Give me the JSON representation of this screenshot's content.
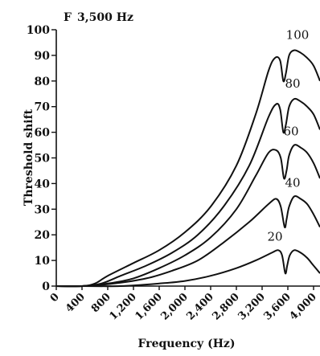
{
  "chart_data": {
    "type": "line",
    "panel_label": "F",
    "title": "3,500 Hz",
    "xlabel": "Frequency (Hz)",
    "ylabel": "Threshold shift",
    "xlim": [
      0,
      4100
    ],
    "ylim": [
      0,
      100
    ],
    "x_ticks": [
      "0",
      "400",
      "800",
      "1,200",
      "1,600",
      "2,000",
      "2,400",
      "2,800",
      "3,200",
      "3,600",
      "4,000"
    ],
    "x_tick_values": [
      0,
      400,
      800,
      1200,
      1600,
      2000,
      2400,
      2800,
      3200,
      3600,
      4000
    ],
    "y_ticks": [
      "0",
      "10",
      "20",
      "30",
      "40",
      "50",
      "60",
      "70",
      "80",
      "90",
      "100"
    ],
    "y_tick_values": [
      0,
      10,
      20,
      30,
      40,
      50,
      60,
      70,
      80,
      90,
      100
    ],
    "grid": false,
    "legend": "none",
    "series": [
      {
        "label": "100",
        "x": [
          0,
          400,
          600,
          800,
          1200,
          1600,
          2000,
          2400,
          2800,
          3100,
          3300,
          3400,
          3480,
          3530,
          3570,
          3620,
          3700,
          3800,
          3900,
          4000,
          4100
        ],
        "y": [
          0,
          0,
          1,
          4,
          9,
          14,
          21,
          31,
          47,
          67,
          84,
          89,
          88,
          80,
          83,
          90,
          92,
          91,
          89,
          86,
          80
        ]
      },
      {
        "label": "80",
        "x": [
          0,
          400,
          700,
          1000,
          1400,
          1800,
          2200,
          2600,
          3000,
          3300,
          3420,
          3480,
          3530,
          3570,
          3620,
          3700,
          3800,
          3900,
          4000,
          4100
        ],
        "y": [
          0,
          0,
          1,
          4,
          8,
          13,
          20,
          31,
          47,
          66,
          71,
          69,
          60,
          63,
          70,
          73,
          72,
          70,
          67,
          61
        ]
      },
      {
        "label": "60",
        "x": [
          0,
          400,
          800,
          1200,
          1600,
          2000,
          2400,
          2800,
          3100,
          3300,
          3420,
          3490,
          3540,
          3580,
          3620,
          3700,
          3800,
          3900,
          4000,
          4100
        ],
        "y": [
          0,
          0,
          1,
          3,
          7,
          12,
          19,
          30,
          43,
          52,
          53,
          50,
          42,
          45,
          51,
          55,
          54,
          52,
          48,
          42
        ]
      },
      {
        "label": "40",
        "x": [
          0,
          400,
          900,
          1400,
          1800,
          2200,
          2600,
          3000,
          3300,
          3420,
          3490,
          3550,
          3580,
          3620,
          3700,
          3800,
          3900,
          4000,
          4100
        ],
        "y": [
          0,
          0,
          1,
          3,
          6,
          10,
          17,
          25,
          32,
          34,
          31,
          23,
          26,
          31,
          35,
          34,
          32,
          28,
          23
        ]
      },
      {
        "label": "20",
        "x": [
          0,
          400,
          1000,
          1600,
          2000,
          2400,
          2800,
          3100,
          3350,
          3450,
          3510,
          3560,
          3590,
          3630,
          3700,
          3800,
          3900,
          4000,
          4100
        ],
        "y": [
          0,
          0,
          0,
          1,
          2,
          4,
          7,
          10,
          13,
          14,
          12,
          5,
          8,
          12,
          14,
          13,
          11,
          8,
          5
        ]
      }
    ]
  }
}
